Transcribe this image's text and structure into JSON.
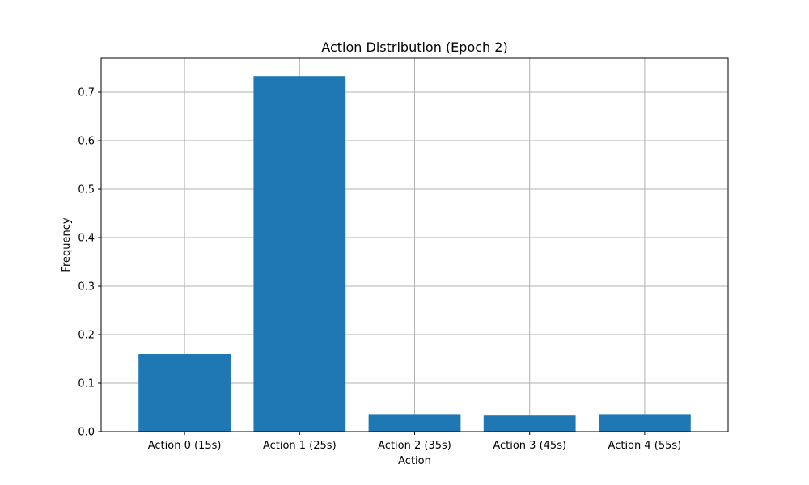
{
  "chart_data": {
    "type": "bar",
    "title": "Action Distribution (Epoch 2)",
    "xlabel": "Action",
    "ylabel": "Frequency",
    "categories": [
      "Action 0 (15s)",
      "Action 1 (25s)",
      "Action 2 (35s)",
      "Action 3 (45s)",
      "Action 4 (55s)"
    ],
    "values": [
      0.16,
      0.733,
      0.036,
      0.033,
      0.036
    ],
    "ylim": [
      0,
      0.77
    ],
    "yticks": [
      0.0,
      0.1,
      0.2,
      0.3,
      0.4,
      0.5,
      0.6,
      0.7
    ],
    "ytick_labels": [
      "0.0",
      "0.1",
      "0.2",
      "0.3",
      "0.4",
      "0.5",
      "0.6",
      "0.7"
    ],
    "grid": true,
    "bar_color": "#1f77b4"
  }
}
